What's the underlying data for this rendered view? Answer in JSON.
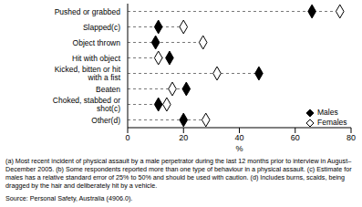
{
  "chart_data": {
    "type": "dot",
    "orientation": "horizontal",
    "categories": [
      "Pushed or grabbed",
      "Slapped(c)",
      "Object thrown",
      "Hit with object",
      "Kicked, bitten or hit with a fist",
      "Beaten",
      "Choked, stabbed or shot(c)",
      "Other(d)"
    ],
    "series": [
      {
        "name": "Males",
        "color": "#000000",
        "marker": "filled diamond",
        "values": [
          66,
          11,
          10,
          15,
          47,
          21,
          11,
          20
        ]
      },
      {
        "name": "Females",
        "color": "#000000",
        "marker": "open diamond",
        "values": [
          76,
          20,
          27,
          11,
          32,
          16,
          14,
          28
        ]
      }
    ],
    "x_label": "%",
    "xlim": [
      0,
      80
    ],
    "xticks": [
      0,
      20,
      40,
      60,
      80
    ],
    "legend": "lower right",
    "grid": false,
    "line_style": "dashed",
    "notes": "(a) Most recent incident of physical assault by a male perpetrator during the last 12 months prior to interview in August–December 2005. (b) Some respondents reported more than one type of behaviour in a physical assault. (c) Estimate for males has a relative standard error of 25% to 50% and should be used with caution. (d) Includes burns, scalds, being dragged by the hair and deliberately hit by a vehicle.",
    "source": "Source: Personal Safety, Australia (4906.0)."
  }
}
